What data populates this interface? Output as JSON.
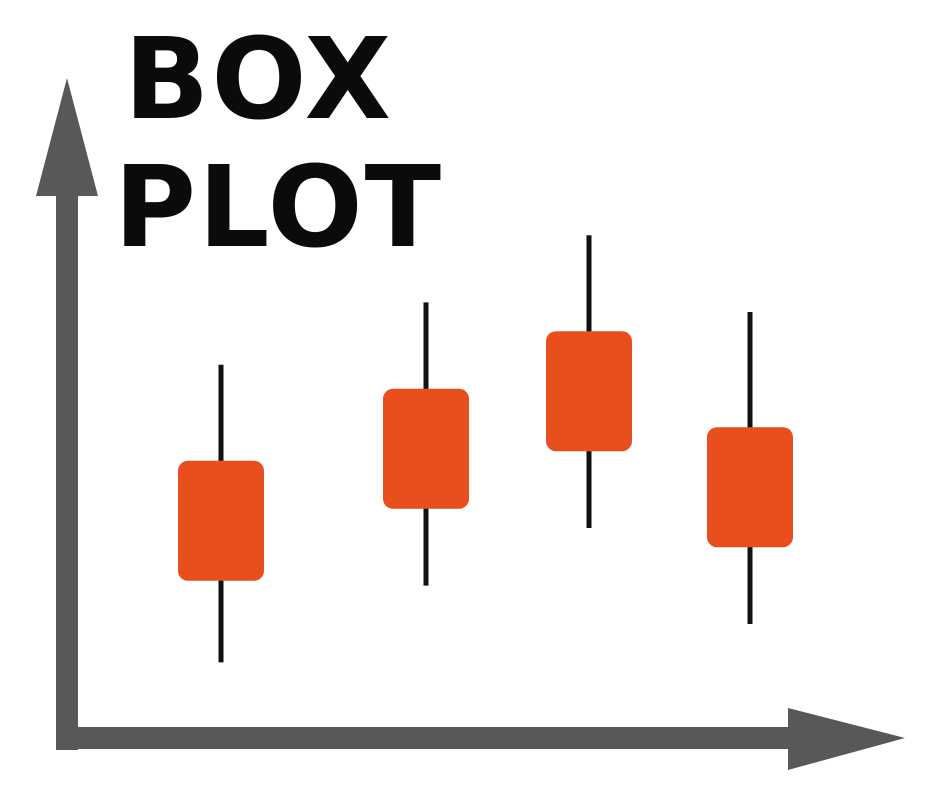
{
  "chart_data": {
    "type": "box",
    "title_lines": [
      "BOX",
      "PLOT"
    ],
    "xlabel": "",
    "ylabel": "",
    "grid": false,
    "legend": "none",
    "colors": {
      "box": "#e94f1d",
      "whisker": "#111111",
      "axis": "#585858",
      "title": "#0d0a0a"
    },
    "series": [
      {
        "boxes": [
          {
            "min": 1.7,
            "q1": 3.4,
            "q3": 5.9,
            "max": 7.9
          },
          {
            "min": 3.3,
            "q1": 4.9,
            "q3": 7.4,
            "max": 9.2
          },
          {
            "min": 4.5,
            "q1": 6.1,
            "q3": 8.6,
            "max": 10.6
          },
          {
            "min": 2.5,
            "q1": 4.1,
            "q3": 6.6,
            "max": 9.0
          }
        ]
      }
    ]
  }
}
